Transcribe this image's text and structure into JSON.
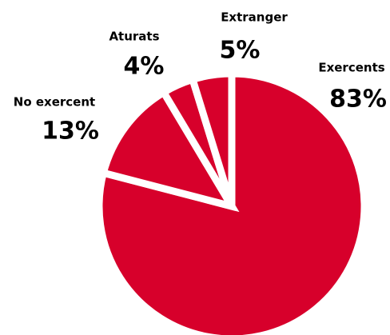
{
  "chart_data": {
    "type": "pie",
    "categories": [
      "Exercents",
      "No exercent",
      "Aturats",
      "Extranger"
    ],
    "values": [
      83,
      13,
      4,
      5
    ],
    "value_labels": [
      "83%",
      "13%",
      "4%",
      "5%"
    ],
    "color": "#d7002b"
  }
}
